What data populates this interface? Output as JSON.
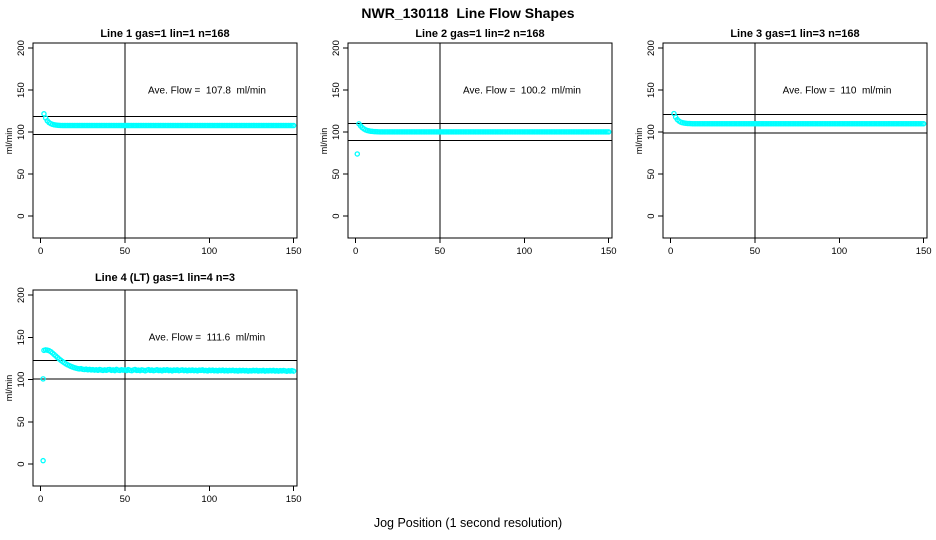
{
  "figure": {
    "title": "NWR_130118  Line Flow Shapes",
    "xlabel": "Jog Position (1 second resolution)",
    "background": "#ffffff",
    "point_color": "#00ffff",
    "axis_color": "#000000"
  },
  "chart_data": [
    {
      "type": "scatter",
      "title": "Line 1 gas=1 lin=1 n=168",
      "annotation": "Ave. Flow =  107.8  ml/min",
      "ave_flow": 107.8,
      "ylabel": "ml/min",
      "x_ticks": [
        0,
        50,
        100,
        150
      ],
      "y_ticks": [
        0,
        50,
        100,
        150,
        200
      ],
      "xlim": [
        -4.5,
        152
      ],
      "ylim": [
        -26,
        206
      ],
      "ref_h": [
        118.6,
        97.0
      ],
      "ref_v": 50,
      "points": [
        [
          2,
          121.8
        ],
        [
          3,
          116.7
        ],
        [
          4,
          113.4
        ],
        [
          5,
          111.4
        ],
        [
          6,
          110.1
        ],
        [
          7,
          109.3
        ],
        [
          8,
          108.7
        ],
        [
          9,
          108.4
        ],
        [
          10,
          108.2
        ],
        [
          11,
          108.0
        ],
        [
          12,
          107.9
        ],
        {
          "run": [
            13,
            150
          ],
          "y": 107.8
        }
      ]
    },
    {
      "type": "scatter",
      "title": "Line 2 gas=1 lin=2 n=168",
      "annotation": "Ave. Flow =  100.2  ml/min",
      "ave_flow": 100.2,
      "ylabel": "ml/min",
      "x_ticks": [
        0,
        50,
        100,
        150
      ],
      "y_ticks": [
        0,
        50,
        100,
        150,
        200
      ],
      "xlim": [
        -4.5,
        152
      ],
      "ylim": [
        -26,
        206
      ],
      "ref_h": [
        110.2,
        90.2
      ],
      "ref_v": 50,
      "points": [
        [
          1,
          74.0
        ],
        [
          2,
          109.8
        ],
        [
          3,
          107.3
        ],
        [
          4,
          105.2
        ],
        [
          5,
          103.7
        ],
        [
          6,
          102.6
        ],
        [
          7,
          101.9
        ],
        [
          8,
          101.4
        ],
        [
          9,
          101.0
        ],
        [
          10,
          100.8
        ],
        [
          11,
          100.6
        ],
        [
          12,
          100.5
        ],
        [
          13,
          100.4
        ],
        [
          14,
          100.3
        ],
        {
          "run": [
            15,
            150
          ],
          "y": 100.2
        }
      ]
    },
    {
      "type": "scatter",
      "title": "Line 3 gas=1 lin=3 n=168",
      "annotation": "Ave. Flow =  110  ml/min",
      "ave_flow": 110,
      "ylabel": "ml/min",
      "x_ticks": [
        0,
        50,
        100,
        150
      ],
      "y_ticks": [
        0,
        50,
        100,
        150,
        200
      ],
      "xlim": [
        -4.5,
        152
      ],
      "ylim": [
        -26,
        206
      ],
      "ref_h": [
        121.0,
        99.0
      ],
      "ref_v": 50,
      "points": [
        [
          2,
          122.0
        ],
        [
          3,
          117.8
        ],
        [
          4,
          114.9
        ],
        [
          5,
          113.1
        ],
        [
          6,
          111.9
        ],
        [
          7,
          111.2
        ],
        [
          8,
          110.8
        ],
        [
          9,
          110.5
        ],
        [
          10,
          110.3
        ],
        [
          11,
          110.2
        ],
        [
          12,
          110.1
        ],
        {
          "run": [
            13,
            150
          ],
          "y": 110.0
        }
      ]
    },
    {
      "type": "scatter",
      "title": "Line 4 (LT) gas=1 lin=4 n=3",
      "annotation": "Ave. Flow =  111.6  ml/min",
      "ave_flow": 111.6,
      "ylabel": "ml/min",
      "x_ticks": [
        0,
        50,
        100,
        150
      ],
      "y_ticks": [
        0,
        50,
        100,
        150,
        200
      ],
      "xlim": [
        -4.5,
        152
      ],
      "ylim": [
        -26,
        206
      ],
      "ref_h": [
        122.8,
        100.4
      ],
      "ref_v": 50,
      "points": [
        [
          1.5,
          100.8
        ],
        [
          1.5,
          4.0
        ],
        [
          2,
          134.6
        ],
        [
          3,
          135.1
        ],
        [
          4,
          134.8
        ],
        [
          5,
          134.2
        ],
        [
          6,
          133.1
        ],
        [
          7,
          131.5
        ],
        [
          8,
          129.7
        ],
        [
          9,
          127.9
        ],
        [
          10,
          126.1
        ],
        [
          11,
          124.4
        ],
        [
          12,
          122.8
        ],
        [
          13,
          121.3
        ],
        [
          14,
          119.9
        ],
        [
          15,
          118.6
        ],
        [
          16,
          117.5
        ],
        [
          17,
          116.5
        ],
        [
          18,
          115.6
        ],
        [
          19,
          114.8
        ],
        [
          20,
          114.1
        ],
        [
          21,
          113.5
        ],
        [
          22,
          113.0
        ],
        [
          23,
          112.6
        ],
        [
          24,
          112.9
        ],
        [
          25,
          112.2
        ],
        [
          26,
          111.9
        ],
        [
          27,
          112.3
        ],
        [
          28,
          111.6
        ],
        [
          29,
          112.0
        ],
        [
          30,
          111.4
        ],
        [
          31,
          111.8
        ],
        [
          32,
          111.2
        ],
        [
          33,
          111.6
        ],
        [
          34,
          111.0
        ],
        [
          35,
          111.9
        ],
        [
          36,
          111.3
        ],
        [
          37,
          110.8
        ],
        [
          38,
          111.5
        ],
        [
          39,
          111.0
        ],
        [
          40,
          111.7
        ],
        [
          41,
          111.9
        ],
        [
          42,
          110.9
        ],
        [
          43,
          111.5
        ],
        [
          44,
          110.6
        ],
        [
          45,
          112.0
        ],
        [
          46,
          111.2
        ],
        [
          47,
          110.8
        ],
        [
          48,
          111.6
        ],
        [
          49,
          111.1
        ],
        [
          50,
          111.4
        ],
        [
          51,
          110.7
        ],
        [
          52,
          111.8
        ],
        [
          53,
          111.0
        ],
        [
          54,
          110.5
        ],
        [
          55,
          111.3
        ],
        [
          56,
          111.9
        ],
        [
          57,
          110.8
        ],
        [
          58,
          111.2
        ],
        [
          59,
          110.6
        ],
        [
          60,
          111.5
        ],
        [
          61,
          111.0
        ],
        [
          62,
          110.4
        ],
        [
          63,
          111.2
        ],
        [
          64,
          111.7
        ],
        [
          65,
          110.8
        ],
        [
          66,
          111.3
        ],
        [
          67,
          110.5
        ],
        [
          68,
          111.0
        ],
        [
          69,
          111.6
        ],
        [
          70,
          110.7
        ],
        [
          71,
          111.2
        ],
        [
          72,
          110.4
        ],
        [
          73,
          111.4
        ],
        [
          74,
          110.9
        ],
        [
          75,
          111.6
        ],
        [
          76,
          110.6
        ],
        [
          77,
          111.1
        ],
        [
          78,
          110.3
        ],
        [
          79,
          111.3
        ],
        [
          80,
          110.8
        ],
        [
          81,
          111.5
        ],
        [
          82,
          110.5
        ],
        [
          83,
          111.0
        ],
        [
          84,
          111.4
        ],
        [
          85,
          110.6
        ],
        [
          86,
          111.2
        ],
        [
          87,
          110.4
        ],
        [
          88,
          111.1
        ],
        [
          89,
          110.7
        ],
        [
          90,
          111.3
        ],
        [
          91,
          110.5
        ],
        [
          92,
          111.0
        ],
        [
          93,
          110.3
        ],
        [
          94,
          111.2
        ],
        [
          95,
          110.8
        ],
        [
          96,
          111.4
        ],
        [
          97,
          110.5
        ],
        [
          98,
          110.9
        ],
        [
          99,
          110.2
        ],
        [
          100,
          111.1
        ],
        [
          101,
          110.6
        ],
        [
          102,
          111.2
        ],
        [
          103,
          110.4
        ],
        [
          104,
          110.9
        ],
        [
          105,
          110.2
        ],
        [
          106,
          111.0
        ],
        [
          107,
          110.5
        ],
        [
          108,
          111.1
        ],
        [
          109,
          110.3
        ],
        [
          110,
          110.8
        ],
        [
          111,
          110.2
        ],
        [
          112,
          110.9
        ],
        [
          113,
          110.5
        ],
        [
          114,
          111.0
        ],
        [
          115,
          110.3
        ],
        [
          116,
          110.7
        ],
        [
          117,
          110.1
        ],
        [
          118,
          110.8
        ],
        [
          119,
          110.4
        ],
        [
          120,
          110.9
        ],
        [
          121,
          110.3
        ],
        [
          122,
          110.7
        ],
        [
          123,
          110.0
        ],
        [
          124,
          110.6
        ],
        [
          125,
          110.2
        ],
        [
          126,
          110.8
        ],
        [
          127,
          110.4
        ],
        [
          128,
          110.9
        ],
        [
          129,
          110.1
        ],
        [
          130,
          110.6
        ],
        [
          131,
          110.3
        ],
        [
          132,
          110.8
        ],
        [
          133,
          110.0
        ],
        [
          134,
          110.5
        ],
        [
          135,
          110.2
        ],
        [
          136,
          110.7
        ],
        [
          137,
          110.3
        ],
        [
          138,
          110.8
        ],
        [
          139,
          110.1
        ],
        [
          140,
          110.5
        ],
        [
          141,
          110.0
        ],
        [
          142,
          110.6
        ],
        [
          143,
          110.2
        ],
        [
          144,
          110.7
        ],
        [
          145,
          110.3
        ],
        [
          146,
          109.9
        ],
        [
          147,
          110.4
        ],
        [
          148,
          110.1
        ],
        [
          149,
          110.5
        ],
        [
          150,
          110.0
        ]
      ]
    }
  ]
}
